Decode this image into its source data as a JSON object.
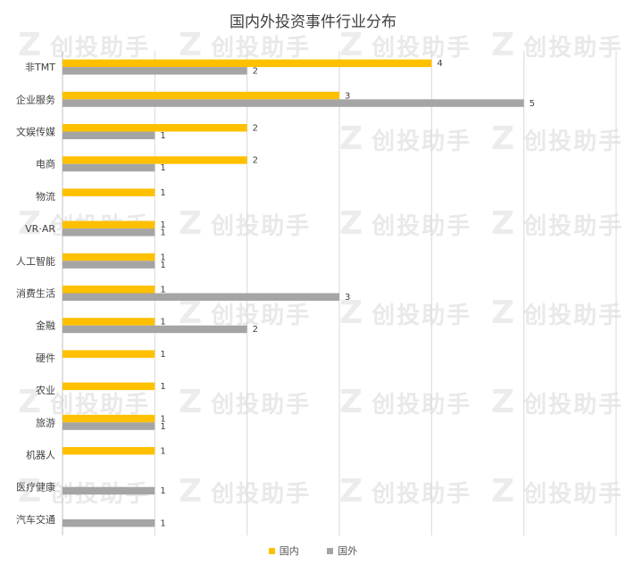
{
  "watermark": "创投助手",
  "chart_data": {
    "type": "bar",
    "orientation": "horizontal",
    "title": "国内外投资事件行业分布",
    "categories": [
      "非TMT",
      "企业服务",
      "文娱传媒",
      "电商",
      "物流",
      "VR·AR",
      "人工智能",
      "消费生活",
      "金融",
      "硬件",
      "农业",
      "旅游",
      "机器人",
      "医疗健康",
      "汽车交通"
    ],
    "series": [
      {
        "name": "国内",
        "color": "#FFC000",
        "values": [
          4,
          3,
          2,
          2,
          1,
          1,
          1,
          1,
          1,
          1,
          1,
          1,
          1,
          null,
          null
        ]
      },
      {
        "name": "国外",
        "color": "#A5A5A5",
        "values": [
          2,
          5,
          1,
          1,
          null,
          1,
          1,
          3,
          2,
          null,
          null,
          1,
          null,
          1,
          1
        ]
      }
    ],
    "xlim": [
      0,
      6
    ],
    "grid": true,
    "legend": "bottom"
  }
}
